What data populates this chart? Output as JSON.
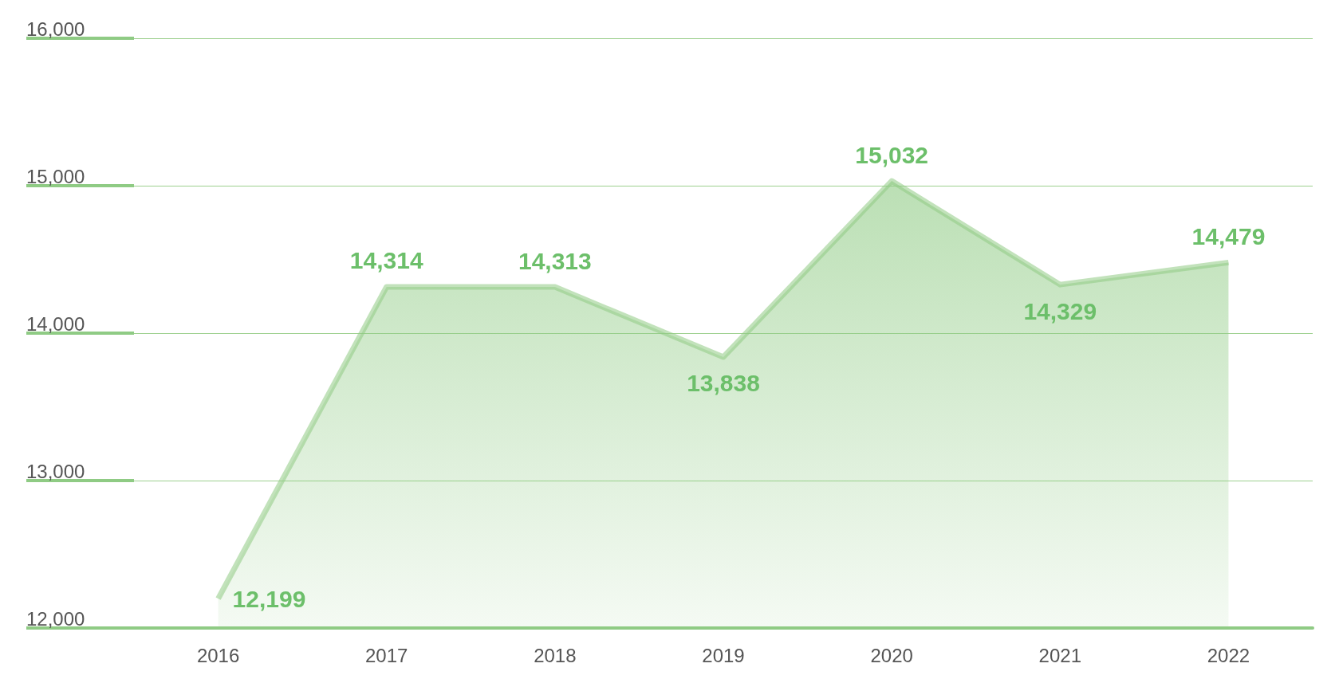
{
  "chart_data": {
    "type": "area",
    "categories": [
      "2016",
      "2017",
      "2018",
      "2019",
      "2020",
      "2021",
      "2022"
    ],
    "series": [
      {
        "color": "#8fcb84",
        "values": [
          12199,
          14314,
          14313,
          13838,
          15032,
          14329,
          14479
        ],
        "value_labels": [
          "12,199",
          "14,314",
          "14,313",
          "13,838",
          "15,032",
          "14,329",
          "14,479"
        ]
      }
    ],
    "ylim": [
      12000,
      16000
    ],
    "yticks": [
      {
        "value": 12000,
        "label": "12,000"
      },
      {
        "value": 13000,
        "label": "13,000"
      },
      {
        "value": 14000,
        "label": "14,000"
      },
      {
        "value": 15000,
        "label": "15,000"
      },
      {
        "value": 16000,
        "label": "16,000"
      }
    ],
    "grid": "y"
  }
}
